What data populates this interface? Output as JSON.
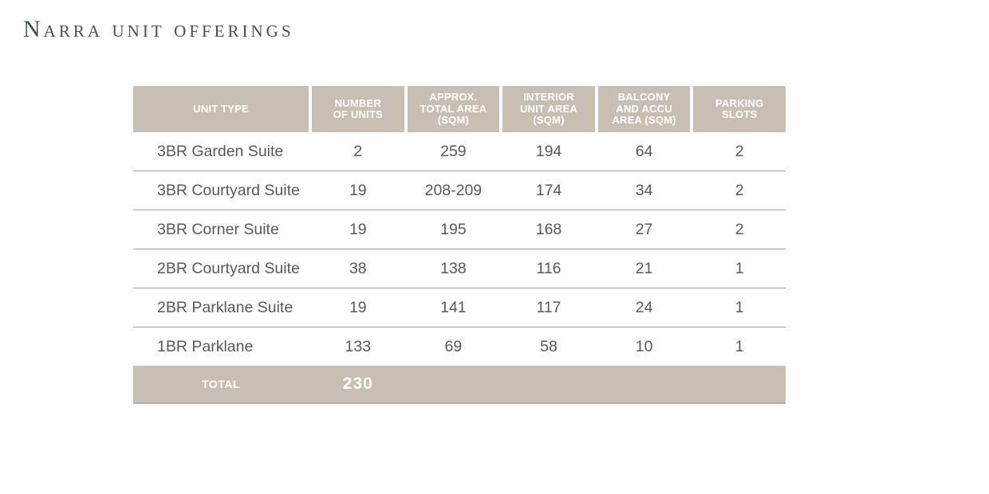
{
  "page": {
    "title": "Narra unit offerings"
  },
  "table": {
    "columns": [
      {
        "id": "unit_type",
        "label": [
          "UNIT TYPE"
        ]
      },
      {
        "id": "number_of_units",
        "label": [
          "NUMBER",
          "OF UNITS"
        ]
      },
      {
        "id": "approx_total_area_sqm",
        "label": [
          "APPROX.",
          "TOTAL AREA",
          "(SQM)"
        ]
      },
      {
        "id": "interior_unit_area_sqm",
        "label": [
          "INTERIOR",
          "UNIT AREA",
          "(SQM)"
        ]
      },
      {
        "id": "balcony_and_accu_area_sqm",
        "label": [
          "BALCONY",
          "AND ACCU",
          "AREA (SQM)"
        ]
      },
      {
        "id": "parking_slots",
        "label": [
          "PARKING",
          "SLOTS"
        ]
      }
    ],
    "rows": [
      {
        "unit_type": "3BR Garden Suite",
        "number_of_units": "2",
        "approx_total_area_sqm": "259",
        "interior_unit_area_sqm": "194",
        "balcony_and_accu_area_sqm": "64",
        "parking_slots": "2"
      },
      {
        "unit_type": "3BR Courtyard Suite",
        "number_of_units": "19",
        "approx_total_area_sqm": "208-209",
        "interior_unit_area_sqm": "174",
        "balcony_and_accu_area_sqm": "34",
        "parking_slots": "2"
      },
      {
        "unit_type": "3BR Corner Suite",
        "number_of_units": "19",
        "approx_total_area_sqm": "195",
        "interior_unit_area_sqm": "168",
        "balcony_and_accu_area_sqm": "27",
        "parking_slots": "2"
      },
      {
        "unit_type": "2BR Courtyard Suite",
        "number_of_units": "38",
        "approx_total_area_sqm": "138",
        "interior_unit_area_sqm": "116",
        "balcony_and_accu_area_sqm": "21",
        "parking_slots": "1"
      },
      {
        "unit_type": "2BR Parklane Suite",
        "number_of_units": "19",
        "approx_total_area_sqm": "141",
        "interior_unit_area_sqm": "117",
        "balcony_and_accu_area_sqm": "24",
        "parking_slots": "1"
      },
      {
        "unit_type": "1BR Parklane",
        "number_of_units": "133",
        "approx_total_area_sqm": "69",
        "interior_unit_area_sqm": "58",
        "balcony_and_accu_area_sqm": "10",
        "parking_slots": "1"
      }
    ],
    "total": {
      "label": "TOTAL",
      "number_of_units": "230"
    }
  },
  "colors": {
    "header_background": "#c8bfb2",
    "header_text": "#ffffff",
    "body_text": "#58595b",
    "title_text": "#45514b",
    "row_separator": "#a59f99",
    "total_bottom_edge": "#b9aea1"
  }
}
